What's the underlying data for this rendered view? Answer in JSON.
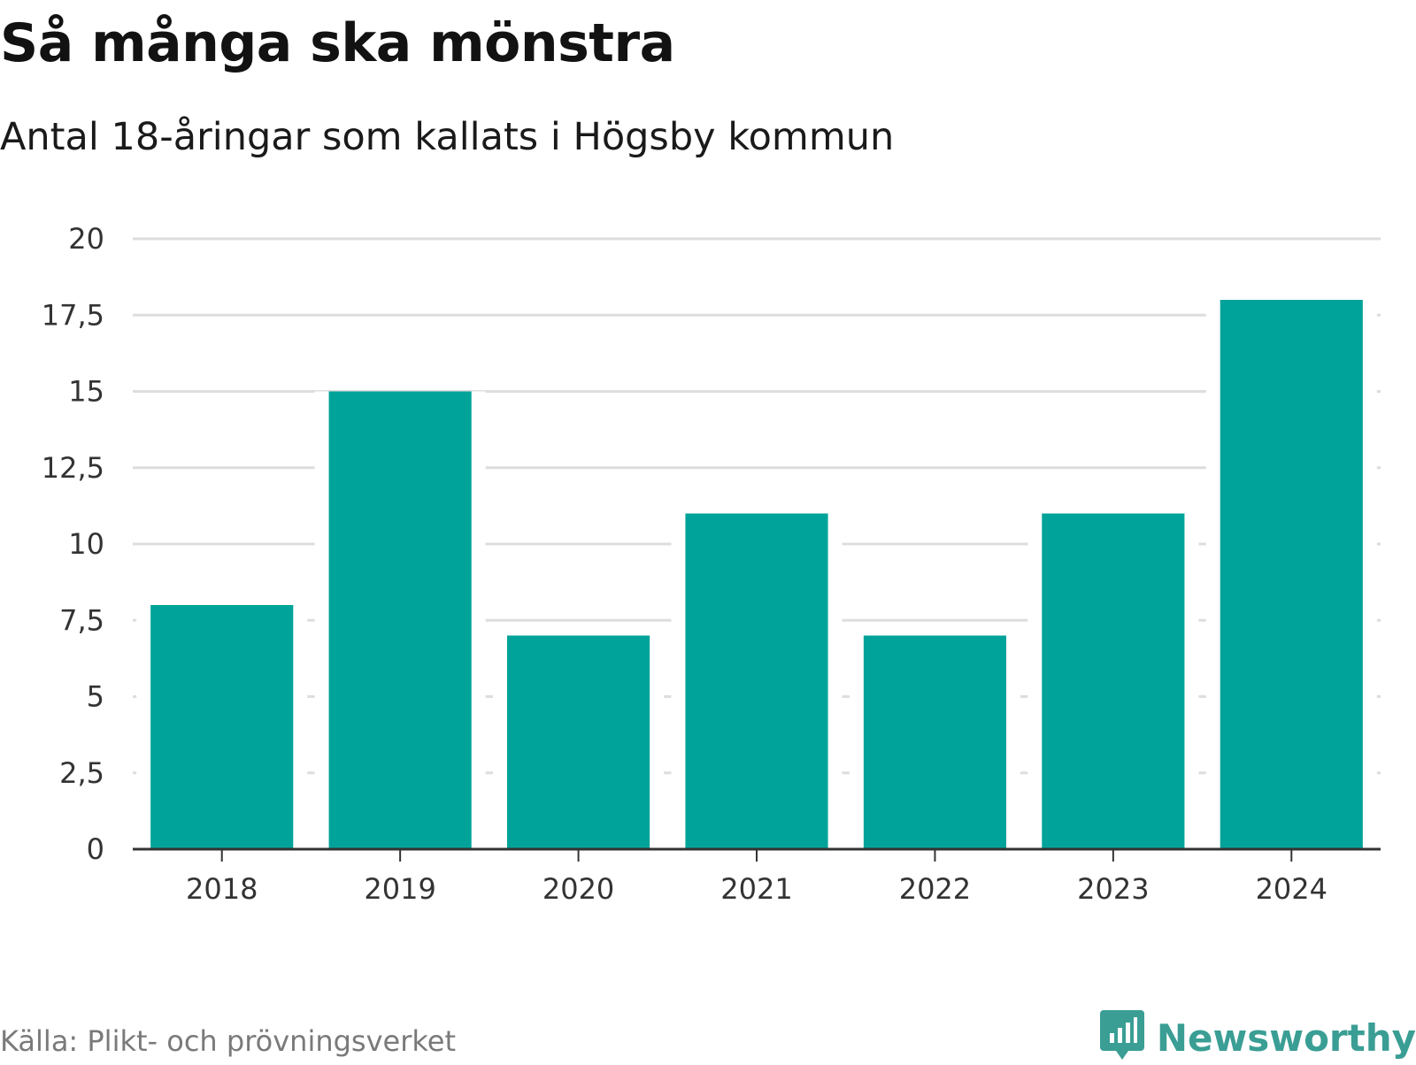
{
  "title": "Så många ska mönstra",
  "subtitle": "Antal 18-åringar som kallats i Högsby kommun",
  "source": "Källa: Plikt- och prövningsverket",
  "brand": {
    "name": "Newsworthy",
    "icon": "newsworthy-chart-bubble-icon",
    "color": "#3a9e94"
  },
  "colors": {
    "bar": "#00a399",
    "grid": "#dddddd",
    "axis": "#333333"
  },
  "chart_data": {
    "type": "bar",
    "title": "Så många ska mönstra",
    "subtitle": "Antal 18-åringar som kallats i Högsby kommun",
    "categories": [
      "2018",
      "2019",
      "2020",
      "2021",
      "2022",
      "2023",
      "2024"
    ],
    "values": [
      8,
      15,
      7,
      11,
      7,
      11,
      18
    ],
    "xlabel": "",
    "ylabel": "",
    "ylim": [
      0,
      20
    ],
    "yticks": [
      0,
      2.5,
      5,
      7.5,
      10,
      12.5,
      15,
      17.5,
      20
    ],
    "ytick_labels": [
      "0",
      "2,5",
      "5",
      "7,5",
      "10",
      "12,5",
      "15",
      "17,5",
      "20"
    ],
    "grid": true,
    "legend": "none"
  }
}
